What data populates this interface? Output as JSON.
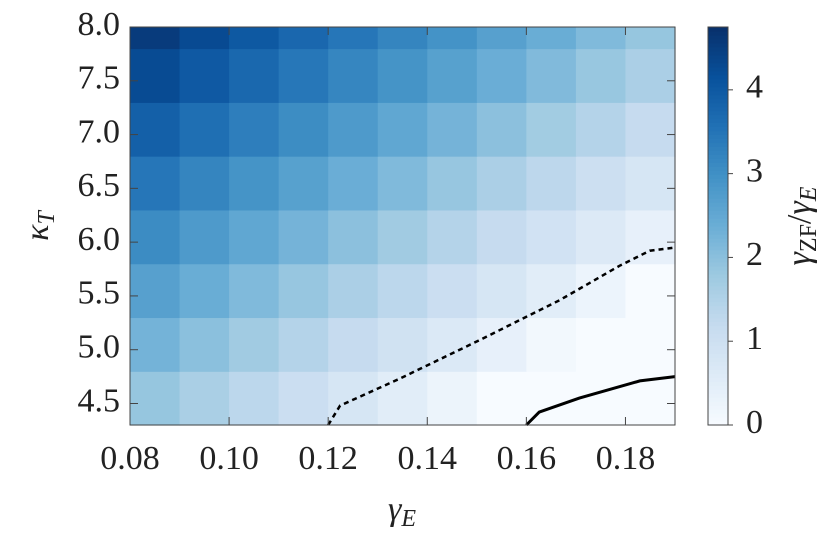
{
  "chart_data": {
    "type": "heatmap",
    "xlabel": [
      "γ",
      "E"
    ],
    "ylabel": [
      "κ",
      "T"
    ],
    "clabel": [
      "γ",
      "ZF",
      "/",
      "γ",
      "E"
    ],
    "xlim": [
      0.08,
      0.19
    ],
    "ylim": [
      4.3,
      8.0
    ],
    "xticks": [
      0.08,
      {
        "value": 0.1,
        "label": "0.10"
      },
      0.12,
      0.14,
      0.16,
      0.18
    ],
    "yticks": [
      4.5,
      {
        "value": 5,
        "label": "5.0"
      },
      5.5,
      {
        "value": 6,
        "label": "6.0"
      },
      6.5,
      {
        "value": 7,
        "label": "7.0"
      },
      7.5,
      {
        "value": 8,
        "label": "8.0"
      }
    ],
    "clim": [
      0,
      4.75
    ],
    "cticks": [
      0,
      1,
      2,
      3,
      4
    ],
    "colormap": "Blues",
    "x_edges": [
      0.08,
      0.09,
      0.1,
      0.11,
      0.12,
      0.13,
      0.14,
      0.15,
      0.16,
      0.17,
      0.18,
      0.19
    ],
    "y_edges": [
      4.3,
      4.8,
      5.3,
      5.8,
      6.3,
      6.8,
      7.3,
      7.8,
      8.0
    ],
    "z": [
      [
        1.87,
        1.6,
        1.33,
        1.06,
        0.79,
        0.53,
        0.26,
        -0.01,
        -0.28,
        -0.55,
        -0.81
      ],
      [
        2.27,
        2.0,
        1.73,
        1.46,
        1.19,
        0.93,
        0.66,
        0.39,
        0.12,
        -0.15,
        -0.41
      ],
      [
        2.67,
        2.4,
        2.13,
        1.86,
        1.59,
        1.33,
        1.06,
        0.79,
        0.52,
        0.25,
        -0.01
      ],
      [
        3.07,
        2.8,
        2.53,
        2.26,
        1.99,
        1.73,
        1.46,
        1.19,
        0.92,
        0.65,
        0.39
      ],
      [
        3.47,
        3.2,
        2.93,
        2.66,
        2.39,
        2.13,
        1.86,
        1.59,
        1.32,
        1.05,
        0.79
      ],
      [
        3.87,
        3.6,
        3.33,
        3.06,
        2.79,
        2.53,
        2.26,
        1.99,
        1.72,
        1.45,
        1.19
      ],
      [
        4.27,
        4.0,
        3.73,
        3.46,
        3.19,
        2.93,
        2.66,
        2.39,
        2.12,
        1.85,
        1.59
      ],
      [
        4.55,
        4.28,
        4.01,
        3.74,
        3.47,
        3.21,
        2.94,
        2.67,
        2.4,
        2.13,
        1.87
      ]
    ],
    "contours": [
      {
        "style": "dashed",
        "x": [
          0.12,
          0.1224,
          0.1344,
          0.1506,
          0.1667,
          0.1788,
          0.1849,
          0.19
        ],
        "y": [
          4.3,
          4.48,
          4.73,
          5.09,
          5.46,
          5.78,
          5.92,
          5.95
        ]
      },
      {
        "style": "solid",
        "x": [
          0.16,
          0.1626,
          0.1707,
          0.1829,
          0.19
        ],
        "y": [
          4.3,
          4.42,
          4.55,
          4.71,
          4.75
        ]
      }
    ]
  }
}
